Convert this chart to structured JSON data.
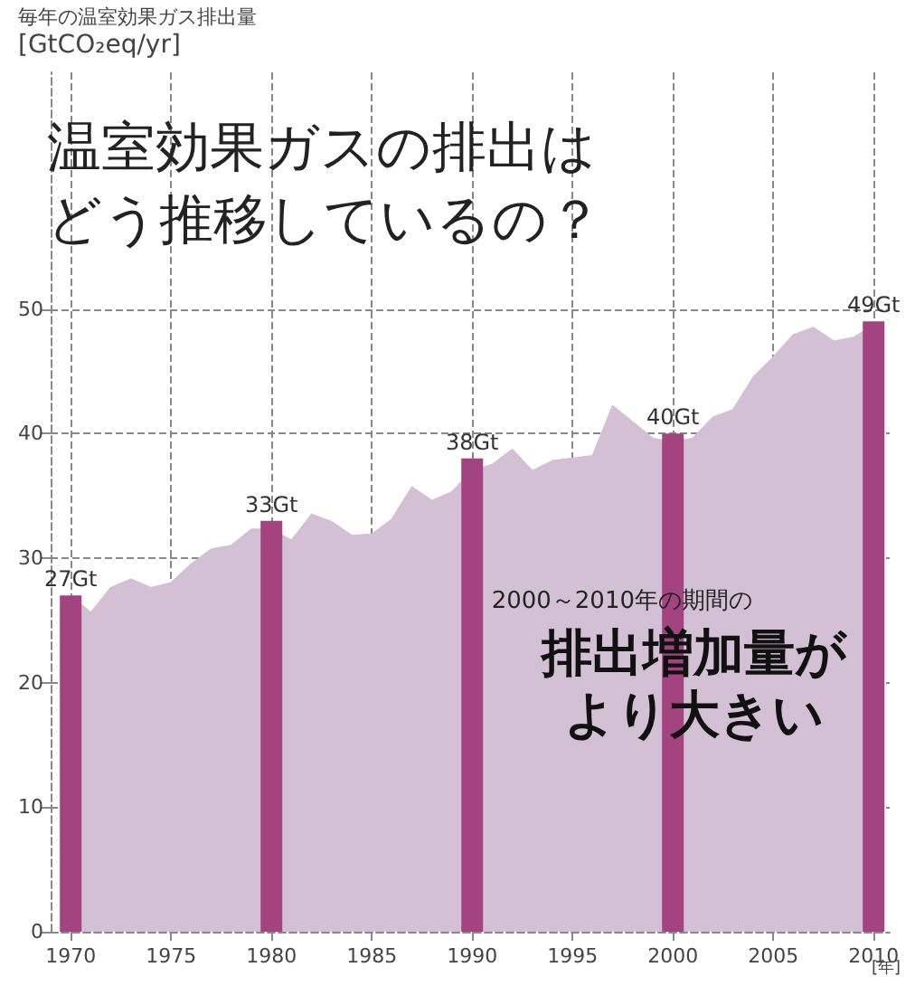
{
  "chart_data": {
    "type": "area",
    "title": "温室効果ガスの排出はどう推移しているの？",
    "ylabel": "毎年の温室効果ガス排出量\n[GtCO₂eq/yr]",
    "xlabel": "[年]",
    "annotations": [
      "2000～2010年の期間の",
      "排出増加量がより大きい"
    ],
    "series": [
      {
        "color": "#d3c0d4",
        "x": [
          1970,
          1971,
          1972,
          1973,
          1974,
          1975,
          1976,
          1977,
          1978,
          1979,
          1980,
          1981,
          1982,
          1983,
          1984,
          1985,
          1986,
          1987,
          1988,
          1989,
          1990,
          1991,
          1992,
          1993,
          1994,
          1995,
          1996,
          1997,
          1998,
          1999,
          2000,
          2001,
          2002,
          2003,
          2004,
          2005,
          2006,
          2007,
          2008,
          2009,
          2010
        ],
        "values": [
          27,
          25.6,
          27.6,
          28.3,
          27.6,
          28,
          29.5,
          30.7,
          31,
          32.3,
          32.3,
          31.4,
          33.5,
          32.9,
          31.8,
          31.9,
          33.1,
          35.7,
          34.6,
          35.3,
          37,
          37.5,
          38.7,
          37,
          37.8,
          38,
          38.2,
          42.2,
          40.9,
          39.6,
          39.3,
          39.6,
          41.3,
          41.9,
          44.5,
          46.1,
          47.9,
          48.5,
          47.4,
          47.7,
          48.7
        ]
      },
      {
        "type": "bar",
        "color": "#a3437f",
        "x": [
          1970,
          1980,
          1990,
          2000,
          2010
        ],
        "values": [
          27,
          33,
          38,
          40,
          49
        ],
        "value_labels": [
          "27Gt",
          "33Gt",
          "38Gt",
          "40Gt",
          "49Gt"
        ]
      }
    ],
    "xlim": [
      1969,
      2010.8
    ],
    "xticks": [
      1970,
      1975,
      1980,
      1985,
      1990,
      1995,
      2000,
      2005,
      2010
    ],
    "ylim": [
      0,
      69
    ],
    "yticks": [
      0,
      10,
      20,
      30,
      40,
      50
    ],
    "grid": true,
    "marker": "none"
  }
}
